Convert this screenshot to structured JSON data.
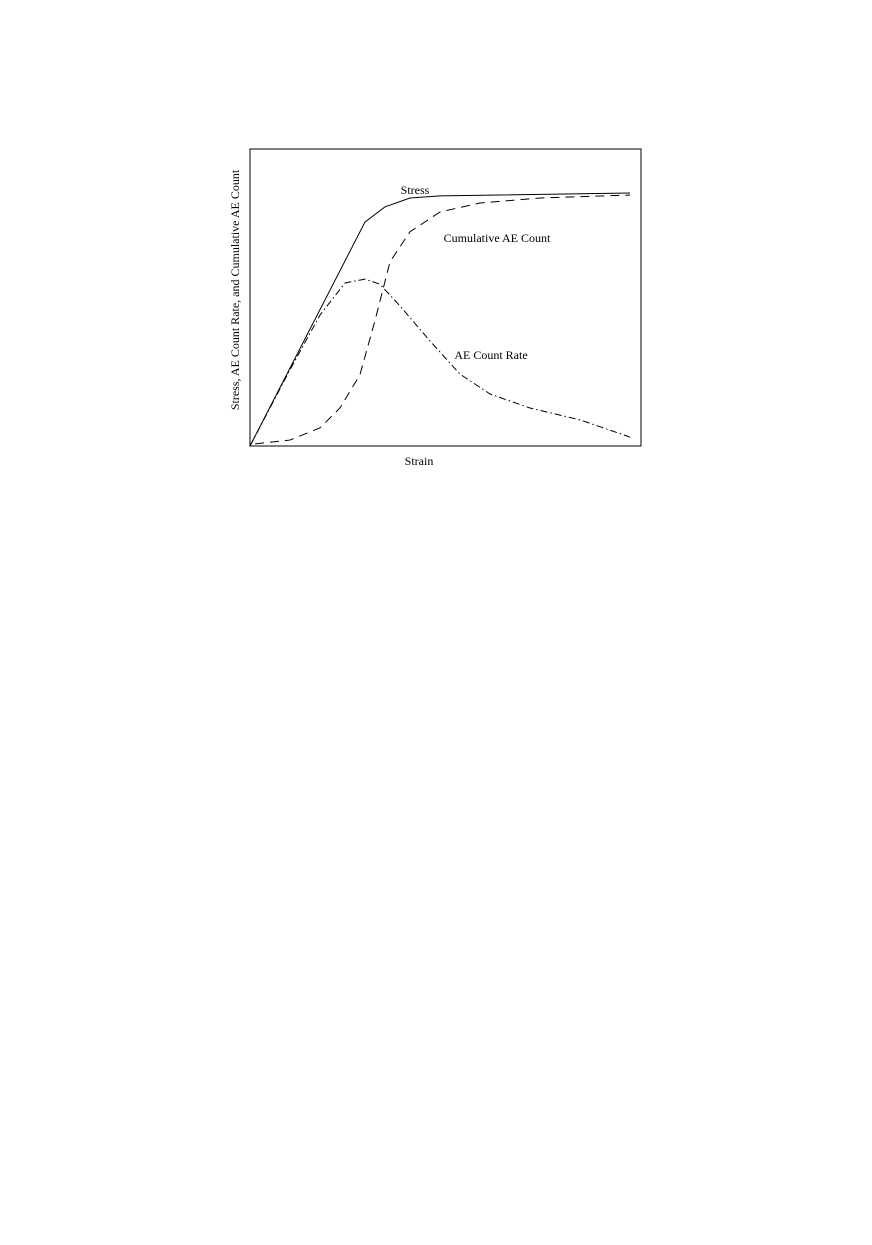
{
  "chart_data": {
    "type": "line",
    "x_label": "Strain",
    "y_label": "Stress, AE Count Rate, and Cumulative AE Count",
    "xlim": [
      0,
      100
    ],
    "ylim": [
      0,
      100
    ],
    "series": [
      {
        "name": "Stress",
        "color": "#000000",
        "style": "solid",
        "x": [
          0,
          29.4,
          34.5,
          40.9,
          48.6,
          97.2
        ],
        "values": [
          0,
          75.4,
          80.5,
          83.5,
          84.2,
          85.2
        ]
      },
      {
        "name": "Cumulative AE Count",
        "color": "#000000",
        "style": "dashed",
        "x": [
          1.3,
          10.2,
          17.9,
          23.0,
          28.1,
          32.0,
          35.8,
          40.9,
          48.6,
          58.8,
          74.2,
          97.2
        ],
        "values": [
          0.7,
          2.0,
          6.1,
          12.8,
          23.9,
          42.4,
          62.0,
          72.1,
          78.8,
          81.8,
          83.5,
          84.5
        ]
      },
      {
        "name": "AE Count Rate",
        "color": "#000000",
        "style": "dashdot",
        "x": [
          0,
          10.2,
          17.9,
          24.3,
          29.4,
          33.2,
          38.4,
          46.0,
          53.7,
          61.4,
          71.6,
          84.4,
          97.2
        ],
        "values": [
          0,
          25.6,
          44.1,
          54.9,
          56.2,
          54.5,
          47.1,
          35.4,
          24.2,
          17.5,
          12.8,
          8.8,
          3.0
        ]
      }
    ]
  }
}
